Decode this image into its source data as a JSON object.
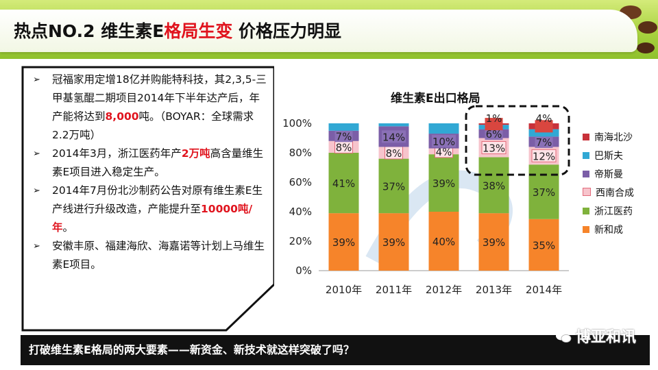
{
  "header": {
    "title_prefix": "热点NO.2 维生素E",
    "title_red": "格局生变",
    "title_suffix": " 价格压力明显"
  },
  "bullets": [
    {
      "parts": [
        "冠福家用定增18亿并购能特科技，其2,3,5-三甲基氢醌二期项目2014年下半年达产后，年产能将达到",
        "8,000",
        "吨。（BOYAR：全球需求2.2万吨）"
      ]
    },
    {
      "parts": [
        "2014年3月，浙江医药年产",
        "2万吨",
        "高含量维生素E项目进入稳定生产。"
      ]
    },
    {
      "parts": [
        "2014年7月份北沙制药公告对原有维生素E生产线进行升级改造，产能提升至",
        "10000吨/年",
        "。"
      ]
    },
    {
      "parts": [
        "安徽丰原、福建海欣、海嘉诺等计划上马维生素E项目。"
      ]
    }
  ],
  "banner": "打破维生素E格局的两大要素——新资金、新技术就这样突破了吗？",
  "watermark": "博亚和讯",
  "chart_data": {
    "type": "bar",
    "stacked": true,
    "title": "维生素E出口格局",
    "categories": [
      "2010年",
      "2011年",
      "2012年",
      "2013年",
      "2014年"
    ],
    "ylim": [
      0,
      100
    ],
    "yticks": [
      "0%",
      "20%",
      "40%",
      "60%",
      "80%",
      "100%"
    ],
    "series": [
      {
        "name": "新和成",
        "color": "#f6842a",
        "values": [
          39,
          39,
          40,
          39,
          35
        ],
        "labels": [
          "39%",
          "39%",
          "40%",
          "39%",
          "35%"
        ]
      },
      {
        "name": "浙江医药",
        "color": "#7fb23c",
        "values": [
          41,
          37,
          39,
          38,
          37
        ],
        "labels": [
          "41%",
          "37%",
          "39%",
          "38%",
          "37%"
        ]
      },
      {
        "name": "西南合成",
        "color": "#f7c4cc",
        "values": [
          8,
          8,
          4,
          13,
          12
        ],
        "labels": [
          "8%",
          "8%",
          "4%",
          "13%",
          "12%"
        ]
      },
      {
        "name": "帝斯曼",
        "color": "#7b5ea7",
        "values": [
          7,
          14,
          10,
          6,
          7
        ],
        "labels": [
          "7%",
          "14%",
          "10%",
          "6%",
          "7%"
        ]
      },
      {
        "name": "巴斯夫",
        "color": "#31a8d4",
        "values": [
          5,
          2,
          7,
          3,
          5
        ],
        "labels": [
          "",
          "",
          "",
          "",
          ""
        ]
      },
      {
        "name": "南海北沙",
        "color": "#c8313a",
        "values": [
          0,
          0,
          0,
          1,
          4
        ],
        "labels": [
          "",
          "",
          "",
          "1%",
          "4%"
        ]
      }
    ],
    "legend_order": [
      "南海北沙",
      "巴斯夫",
      "帝斯曼",
      "西南合成",
      "浙江医药",
      "新和成"
    ]
  }
}
